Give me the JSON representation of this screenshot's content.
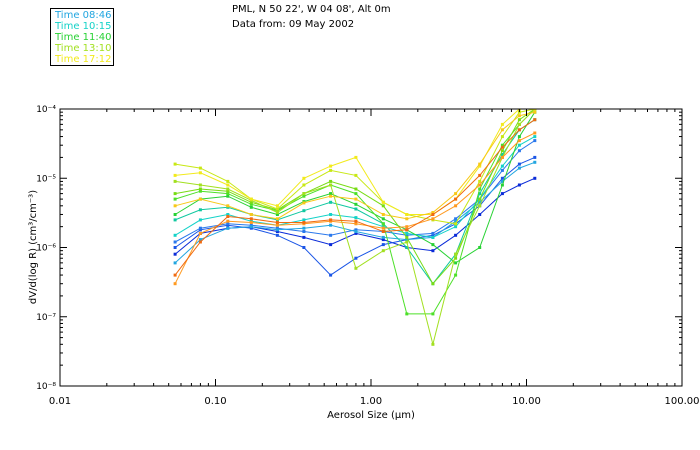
{
  "header": {
    "location": "PML, N 50 22', W 04 08', Alt 0m",
    "date": "Data from: 09 May 2002"
  },
  "legend": [
    {
      "label": "Time 08:46",
      "color": "#22a6e0"
    },
    {
      "label": "Time 10:15",
      "color": "#14d2c8"
    },
    {
      "label": "Time 11:40",
      "color": "#28d234"
    },
    {
      "label": "Time 13:10",
      "color": "#a2e020"
    },
    {
      "label": "Time 17:12",
      "color": "#f2ea1c"
    }
  ],
  "chart_data": {
    "type": "line",
    "title": "",
    "xlabel": "Aerosol Size (",
    "xlabel_unit": "µm",
    "xlabel_close": ")",
    "ylabel": "dV/d(log R) (cm³/cm⁻³)",
    "x_scale": "log",
    "y_scale": "log",
    "xlim": [
      0.01,
      100
    ],
    "ylim": [
      1e-08,
      0.0001
    ],
    "x_ticks": [
      {
        "value": 0.01,
        "label": "0.01"
      },
      {
        "value": 0.1,
        "label": "0.10"
      },
      {
        "value": 1,
        "label": "1.00"
      },
      {
        "value": 10,
        "label": "10.00"
      },
      {
        "value": 100,
        "label": "100.00"
      }
    ],
    "y_ticks": [
      {
        "value": 1e-08,
        "label": "10⁻⁸"
      },
      {
        "value": 1e-07,
        "label": "10⁻⁷"
      },
      {
        "value": 1e-06,
        "label": "10⁻⁶"
      },
      {
        "value": 1e-05,
        "label": "10⁻⁵"
      },
      {
        "value": 0.0001,
        "label": "10⁻⁴"
      }
    ],
    "x": [
      0.055,
      0.08,
      0.12,
      0.17,
      0.25,
      0.37,
      0.55,
      0.8,
      1.2,
      1.7,
      2.5,
      3.5,
      5.0,
      7.0,
      9.0,
      11.3
    ],
    "series": [
      {
        "name": "Time 08:46 (1)",
        "color": "#0a2bd8",
        "values": [
          8e-07,
          1.6e-06,
          1.9e-06,
          2e-06,
          1.7e-06,
          1.4e-06,
          1.1e-06,
          1.6e-06,
          1.3e-06,
          1e-06,
          9e-07,
          1.5e-06,
          3e-06,
          6e-06,
          8e-06,
          1e-05
        ]
      },
      {
        "name": "Time 08:46 (2)",
        "color": "#1a55e6",
        "values": [
          1e-06,
          1.8e-06,
          2.1e-06,
          1.9e-06,
          1.5e-06,
          1e-06,
          4e-07,
          7e-07,
          1.1e-06,
          1.3e-06,
          1.5e-06,
          2.2e-06,
          4e-06,
          1e-05,
          1.6e-05,
          2e-05
        ]
      },
      {
        "name": "Time 08:46 (3)",
        "color": "#2a78ec",
        "values": [
          1.2e-06,
          1.9e-06,
          2.2e-06,
          2.1e-06,
          1.9e-06,
          1.7e-06,
          1.5e-06,
          1.8e-06,
          1.7e-06,
          1.5e-06,
          1.6e-06,
          2.6e-06,
          5e-06,
          1.3e-05,
          2.5e-05,
          3.5e-05
        ]
      },
      {
        "name": "Time 08:46 (4)",
        "color": "#22a6e0",
        "values": [
          6e-07,
          1.3e-06,
          1.9e-06,
          2e-06,
          1.8e-06,
          1.9e-06,
          2.1e-06,
          1.7e-06,
          1.4e-06,
          1.3e-06,
          1.4e-06,
          2.4e-06,
          4.5e-06,
          9e-06,
          1.4e-05,
          1.7e-05
        ]
      },
      {
        "name": "Time 10:15 (1)",
        "color": "#14d2c8",
        "values": [
          1.5e-06,
          2.5e-06,
          3e-06,
          2.4e-06,
          2.1e-06,
          2.5e-06,
          3e-06,
          2.7e-06,
          2e-06,
          1.6e-06,
          1.4e-06,
          2e-06,
          5e-06,
          1.5e-05,
          3e-05,
          4e-05
        ]
      },
      {
        "name": "Time 10:15 (2)",
        "color": "#10c8a0",
        "values": [
          2.5e-06,
          3.5e-06,
          3.8e-06,
          3e-06,
          2.5e-06,
          3.4e-06,
          4.5e-06,
          3.6e-06,
          2.2e-06,
          1e-06,
          3e-07,
          8e-07,
          6e-06,
          2.2e-05,
          5e-05,
          7e-05
        ]
      },
      {
        "name": "Time 11:40 (1)",
        "color": "#28d234",
        "values": [
          3e-06,
          5e-06,
          5.5e-06,
          3.8e-06,
          3e-06,
          4.6e-06,
          6e-06,
          4.2e-06,
          2.6e-06,
          1.8e-06,
          1.1e-06,
          6e-07,
          1e-06,
          8e-06,
          4e-05,
          9e-05
        ]
      },
      {
        "name": "Time 11:40 (2)",
        "color": "#4ce028",
        "values": [
          5e-06,
          6.5e-06,
          6e-06,
          4.2e-06,
          3.4e-06,
          5.5e-06,
          8e-06,
          6e-06,
          2.2e-06,
          1.1e-07,
          1.1e-07,
          4e-07,
          7e-06,
          3e-05,
          6e-05,
          0.0001
        ]
      },
      {
        "name": "Time 13:10 (1)",
        "color": "#78dc14",
        "values": [
          6e-06,
          7e-06,
          6.5e-06,
          4.5e-06,
          3.5e-06,
          6e-06,
          9e-06,
          7e-06,
          4e-06,
          1.4e-06,
          3e-07,
          7e-07,
          5e-06,
          2.5e-05,
          7e-05,
          0.0001
        ]
      },
      {
        "name": "Time 13:10 (2)",
        "color": "#a2e020",
        "values": [
          9e-06,
          8e-06,
          7e-06,
          4.8e-06,
          3.2e-06,
          6e-06,
          8e-06,
          5e-07,
          9e-07,
          1.2e-06,
          4e-08,
          8e-07,
          4e-06,
          2e-05,
          6e-05,
          0.0001
        ]
      },
      {
        "name": "Time 13:10 (3)",
        "color": "#c8e814",
        "values": [
          1.6e-05,
          1.4e-05,
          9e-06,
          5e-06,
          3.6e-06,
          8e-06,
          1.3e-05,
          1.1e-05,
          4.5e-06,
          3e-06,
          2.5e-06,
          2.2e-06,
          9e-06,
          4e-05,
          9e-05,
          0.0001
        ]
      },
      {
        "name": "Time 17:12 (1)",
        "color": "#f2ea1c",
        "values": [
          1.1e-05,
          1.2e-05,
          8e-06,
          5e-06,
          4e-06,
          1e-05,
          1.5e-05,
          2e-05,
          4.5e-06,
          3e-06,
          3e-06,
          5e-06,
          1.5e-05,
          6e-05,
          0.0001,
          0.0001
        ]
      },
      {
        "name": "Time 17:12 (2)",
        "color": "#f8c818",
        "values": [
          4e-06,
          5e-06,
          4e-06,
          3e-06,
          2.6e-06,
          4.4e-06,
          5.5e-06,
          5e-06,
          3e-06,
          2.6e-06,
          3.2e-06,
          6e-06,
          1.6e-05,
          5e-05,
          8e-05,
          9e-05
        ]
      },
      {
        "name": "Time 17:12 (3)",
        "color": "#ff9a20",
        "values": [
          3e-07,
          1.6e-06,
          2.4e-06,
          2.3e-06,
          2.1e-06,
          2.2e-06,
          2.4e-06,
          2.2e-06,
          1.9e-06,
          2e-06,
          2.6e-06,
          4e-06,
          8e-06,
          2e-05,
          3.5e-05,
          4.5e-05
        ]
      },
      {
        "name": "Time 17:12 (4)",
        "color": "#f06a10",
        "values": [
          4e-07,
          1.2e-06,
          2.8e-06,
          2.6e-06,
          2.3e-06,
          2.3e-06,
          2.5e-06,
          2.4e-06,
          1.7e-06,
          1.8e-06,
          3e-06,
          5e-06,
          1.1e-05,
          2.8e-05,
          5e-05,
          7e-05
        ]
      }
    ]
  }
}
